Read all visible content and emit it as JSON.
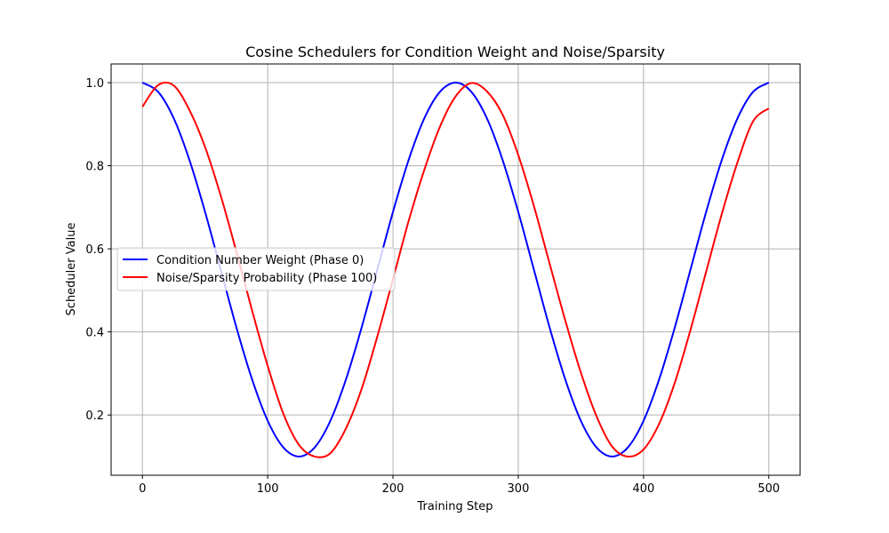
{
  "chart_data": {
    "type": "line",
    "title": "Cosine Schedulers for Condition Weight and Noise/Sparsity",
    "xlabel": "Training Step",
    "ylabel": "Scheduler Value",
    "xlim": [
      -25,
      525
    ],
    "ylim": [
      0.055,
      1.045
    ],
    "xticks": [
      0,
      100,
      200,
      300,
      400,
      500
    ],
    "yticks": [
      0.2,
      0.4,
      0.6,
      0.8,
      1.0
    ],
    "xtick_labels": [
      "0",
      "100",
      "200",
      "300",
      "400",
      "500"
    ],
    "ytick_labels": [
      "0.2",
      "0.4",
      "0.6",
      "0.8",
      "1.0"
    ],
    "grid": true,
    "legend_position": "center-left",
    "series": [
      {
        "name": "Condition Number Weight (Phase 0)",
        "color": "#0000ff",
        "x": [
          0,
          12.5,
          25,
          37.5,
          50,
          62.5,
          75,
          87.5,
          100,
          112.5,
          125,
          137.5,
          150,
          162.5,
          175,
          187.5,
          200,
          212.5,
          225,
          237.5,
          250,
          262.5,
          275,
          287.5,
          300,
          312.5,
          325,
          337.5,
          350,
          362.5,
          375,
          387.5,
          400,
          412.5,
          425,
          437.5,
          450,
          462.5,
          475,
          487.5,
          500
        ],
        "y": [
          1.0,
          0.978,
          0.914,
          0.814,
          0.689,
          0.55,
          0.411,
          0.286,
          0.186,
          0.122,
          0.1,
          0.122,
          0.186,
          0.286,
          0.411,
          0.55,
          0.689,
          0.814,
          0.914,
          0.978,
          1.0,
          0.978,
          0.914,
          0.814,
          0.689,
          0.55,
          0.411,
          0.286,
          0.186,
          0.122,
          0.1,
          0.122,
          0.186,
          0.286,
          0.411,
          0.55,
          0.689,
          0.814,
          0.914,
          0.978,
          1.0
        ]
      },
      {
        "name": "Noise/Sparsity Probability (Phase 100)",
        "color": "#ff0000",
        "x": [
          0,
          12.5,
          25,
          37.5,
          50,
          62.5,
          75,
          87.5,
          100,
          112.5,
          125,
          137.5,
          150,
          162.5,
          175,
          187.5,
          200,
          212.5,
          225,
          237.5,
          250,
          262.5,
          275,
          287.5,
          300,
          312.5,
          325,
          337.5,
          350,
          362.5,
          375,
          387.5,
          400,
          412.5,
          425,
          437.5,
          450,
          462.5,
          475,
          487.5,
          500
        ],
        "y": [
          0.942,
          0.994,
          0.993,
          0.934,
          0.845,
          0.728,
          0.593,
          0.452,
          0.318,
          0.203,
          0.128,
          0.1,
          0.108,
          0.168,
          0.263,
          0.389,
          0.527,
          0.667,
          0.79,
          0.894,
          0.967,
          0.999,
          0.979,
          0.923,
          0.826,
          0.703,
          0.565,
          0.428,
          0.302,
          0.197,
          0.124,
          0.1,
          0.117,
          0.179,
          0.278,
          0.405,
          0.545,
          0.684,
          0.808,
          0.907,
          0.938
        ]
      }
    ]
  }
}
